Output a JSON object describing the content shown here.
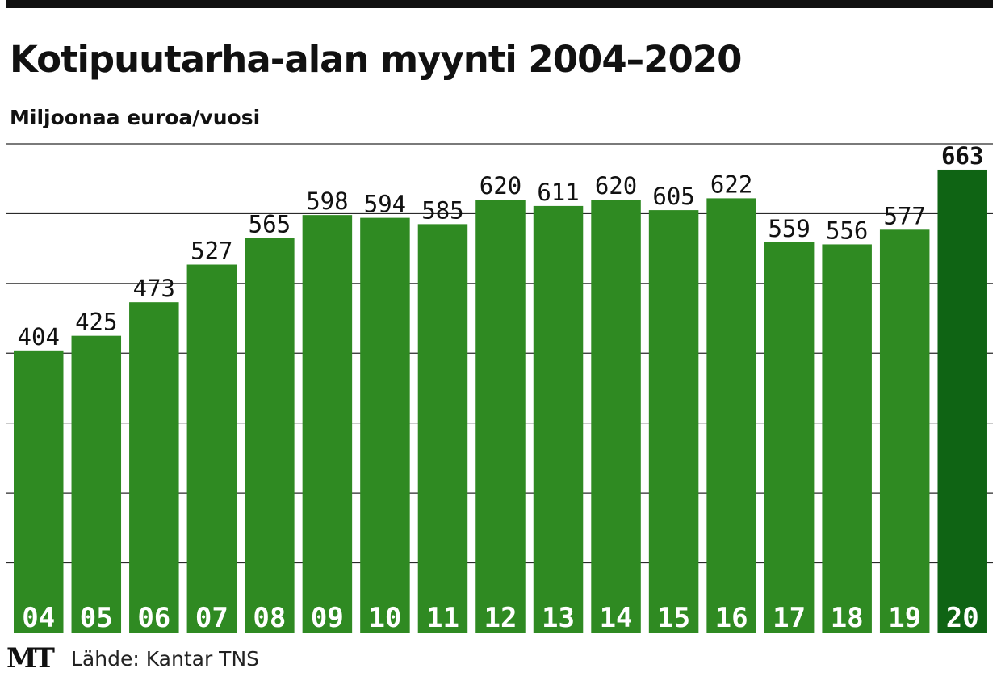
{
  "header": {
    "title": "Kotipuutarha-alan myynti 2004–2020",
    "subtitle": "Miljoonaa euroa/vuosi"
  },
  "footer": {
    "logo": "MT",
    "source": "Lähde: Kantar TNS"
  },
  "colors": {
    "bar": "#2f8a22",
    "highlight_bar": "#0f6414",
    "gridline": "#2a2a2a",
    "tick_label": "#ffffff"
  },
  "chart_data": {
    "type": "bar",
    "title": "Kotipuutarha-alan myynti 2004–2020",
    "ylabel": "Miljoonaa euroa/vuosi",
    "xlabel": "",
    "categories": [
      "04",
      "05",
      "06",
      "07",
      "08",
      "09",
      "10",
      "11",
      "12",
      "13",
      "14",
      "15",
      "16",
      "17",
      "18",
      "19",
      "20"
    ],
    "values": [
      404,
      425,
      473,
      527,
      565,
      598,
      594,
      585,
      620,
      611,
      620,
      605,
      622,
      559,
      556,
      577,
      663
    ],
    "value_labels": [
      "404",
      "425",
      "473",
      "527",
      "565",
      "598",
      "594",
      "585",
      "620",
      "611",
      "620",
      "605",
      "622",
      "559",
      "556",
      "577",
      "663"
    ],
    "highlight_index": 16,
    "ylim": [
      0,
      700
    ],
    "grid": true,
    "legend": "none"
  }
}
